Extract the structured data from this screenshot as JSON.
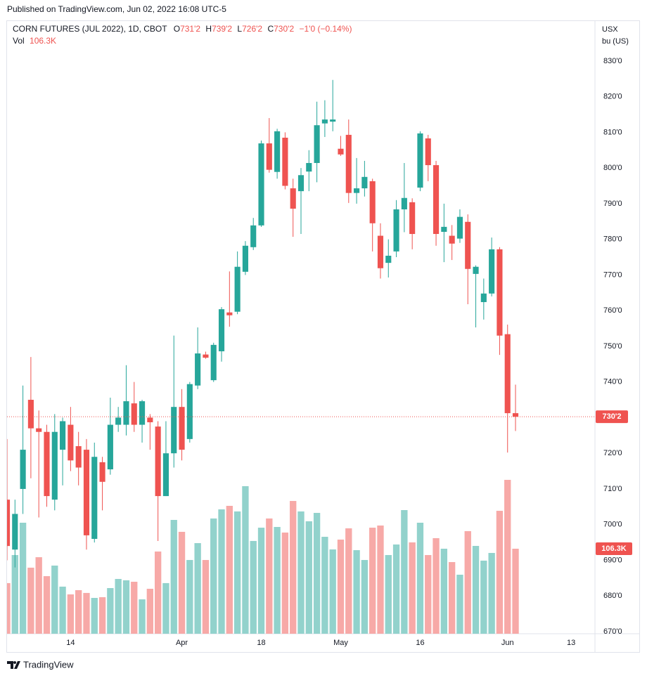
{
  "header": {
    "published": "Published on TradingView.com, Jun 02, 2022 16:08 UTC-5"
  },
  "chart_data": {
    "type": "candlestick",
    "title": "CORN FUTURES (JUL 2022), 1D, CBOT",
    "ohlc_legend": [
      {
        "key": "O",
        "value": "731'2"
      },
      {
        "key": "H",
        "value": "739'2"
      },
      {
        "key": "L",
        "value": "726'2"
      },
      {
        "key": "C",
        "value": "730'2"
      }
    ],
    "change": "−1'0 (−0.14%)",
    "volume_legend": "Vol",
    "volume_label": "106.3K",
    "last_price_label": "730'2",
    "currency": "USX",
    "unit": "bu (US)",
    "open": [
      707,
      693,
      710,
      735,
      727,
      726,
      707,
      721,
      728,
      722,
      721,
      696,
      717.5,
      715.5,
      728,
      728,
      734,
      728,
      730,
      727.5,
      708,
      720,
      733,
      724,
      739,
      747.7,
      740.5,
      748.6,
      759.5,
      759.7,
      770.9,
      777.8,
      783.9,
      806.9,
      798.9,
      808.5,
      794.3,
      793.5,
      799,
      801.4,
      812.5,
      813,
      805.4,
      809.3,
      793,
      794.3,
      796.3,
      781,
      773.4,
      776.6,
      788.4,
      790.4,
      794.5,
      808.3,
      800.8,
      782.1,
      781,
      780.2,
      784.9,
      770.3,
      762.4,
      764.8,
      777.2,
      753.4,
      731.25
    ],
    "high": [
      724,
      707,
      739,
      747,
      732,
      728,
      731,
      730,
      733,
      726,
      724,
      723,
      719,
      735.6,
      733,
      744.7,
      740,
      735,
      731,
      729,
      729,
      753,
      738,
      740,
      755.3,
      748.5,
      751,
      761,
      771,
      776.6,
      779.5,
      786,
      807.7,
      814,
      811,
      810,
      797,
      800,
      805,
      818.6,
      819,
      824.7,
      809,
      813.6,
      802.8,
      802,
      797,
      784.5,
      780,
      791,
      801.4,
      791.5,
      810.3,
      809.3,
      802,
      790,
      784,
      788.4,
      787,
      772.7,
      769,
      780.5,
      777.8,
      756.1,
      739.25
    ],
    "low": [
      690,
      688,
      703,
      713,
      702,
      705,
      704,
      711,
      715,
      711,
      693,
      695,
      704,
      714,
      726,
      725,
      726,
      723,
      721,
      695.4,
      708,
      716,
      718,
      723,
      738,
      746.5,
      740,
      745.7,
      755.5,
      759,
      770,
      777,
      783.5,
      798.7,
      797,
      794,
      780.7,
      781.5,
      793.5,
      796,
      808.7,
      810.3,
      803.4,
      790.2,
      790,
      792,
      776.6,
      769,
      769.3,
      775,
      782,
      777.2,
      793.5,
      796.3,
      778.2,
      773.6,
      774.2,
      779,
      761.8,
      755.3,
      757.5,
      764,
      747.6,
      720.2,
      726.25
    ],
    "close": [
      694,
      703,
      721,
      727,
      726,
      708,
      726,
      729,
      718,
      716,
      697,
      719,
      712,
      728,
      730,
      734.6,
      728,
      734.6,
      728.7,
      708,
      720,
      733,
      721,
      739.4,
      748,
      746.8,
      750.4,
      760.4,
      758.7,
      772.3,
      778.2,
      783.9,
      806.9,
      799.5,
      810.3,
      795,
      788.6,
      798,
      801.4,
      812,
      813.6,
      813.6,
      803.8,
      793,
      794.3,
      797.5,
      784.5,
      771.9,
      775.4,
      788.4,
      791.6,
      781.5,
      809.7,
      800.8,
      781.5,
      783.5,
      778.8,
      786.3,
      771.7,
      772.3,
      764.8,
      777.2,
      753,
      731.25,
      730.25
    ],
    "volume": [
      63300,
      98400,
      138800,
      82600,
      95700,
      72000,
      85200,
      58900,
      49200,
      54500,
      51000,
      44800,
      45700,
      57100,
      68500,
      66800,
      65000,
      43000,
      56200,
      102800,
      63300,
      142300,
      127400,
      92200,
      113300,
      92200,
      144100,
      155500,
      159900,
      152900,
      184500,
      116000,
      132600,
      144100,
      133500,
      126500,
      166000,
      152900,
      140600,
      151100,
      121200,
      105400,
      117700,
      131800,
      104500,
      92200,
      132600,
      135300,
      98400,
      111600,
      154600,
      114200,
      138800,
      98400,
      119500,
      106300,
      89600,
      73800,
      128300,
      109800,
      91400,
      101000,
      153700,
      192400,
      106300
    ],
    "up_color": "#26a69a",
    "down_color": "#ef5350",
    "volume_up_color": "#92d2cc",
    "volume_down_color": "#f7a9a7",
    "xlim": [
      0,
      74
    ],
    "xticks": [
      {
        "value": 8,
        "label": "14"
      },
      {
        "value": 22,
        "label": "Apr"
      },
      {
        "value": 32,
        "label": "18"
      },
      {
        "value": 42,
        "label": "May"
      },
      {
        "value": 52,
        "label": "16"
      },
      {
        "value": 63,
        "label": "Jun"
      },
      {
        "value": 71,
        "label": "13"
      }
    ],
    "ylim": [
      669.4,
      841.2
    ],
    "yticks": [
      {
        "value": 670,
        "label": "670'0"
      },
      {
        "value": 680,
        "label": "680'0"
      },
      {
        "value": 690,
        "label": "690'0"
      },
      {
        "value": 700,
        "label": "700'0"
      },
      {
        "value": 710,
        "label": "710'0"
      },
      {
        "value": 720,
        "label": "720'0"
      },
      {
        "value": 730,
        "label": "730'0"
      },
      {
        "value": 740,
        "label": "740'0"
      },
      {
        "value": 750,
        "label": "750'0"
      },
      {
        "value": 760,
        "label": "760'0"
      },
      {
        "value": 770,
        "label": "770'0"
      },
      {
        "value": 780,
        "label": "780'0"
      },
      {
        "value": 790,
        "label": "790'0"
      },
      {
        "value": 800,
        "label": "800'0"
      },
      {
        "value": 810,
        "label": "810'0"
      },
      {
        "value": 820,
        "label": "820'0"
      },
      {
        "value": 830,
        "label": "830'0"
      }
    ],
    "vlim": [
      0,
      766000
    ],
    "grid": true
  },
  "footer": {
    "brand": "TradingView"
  }
}
